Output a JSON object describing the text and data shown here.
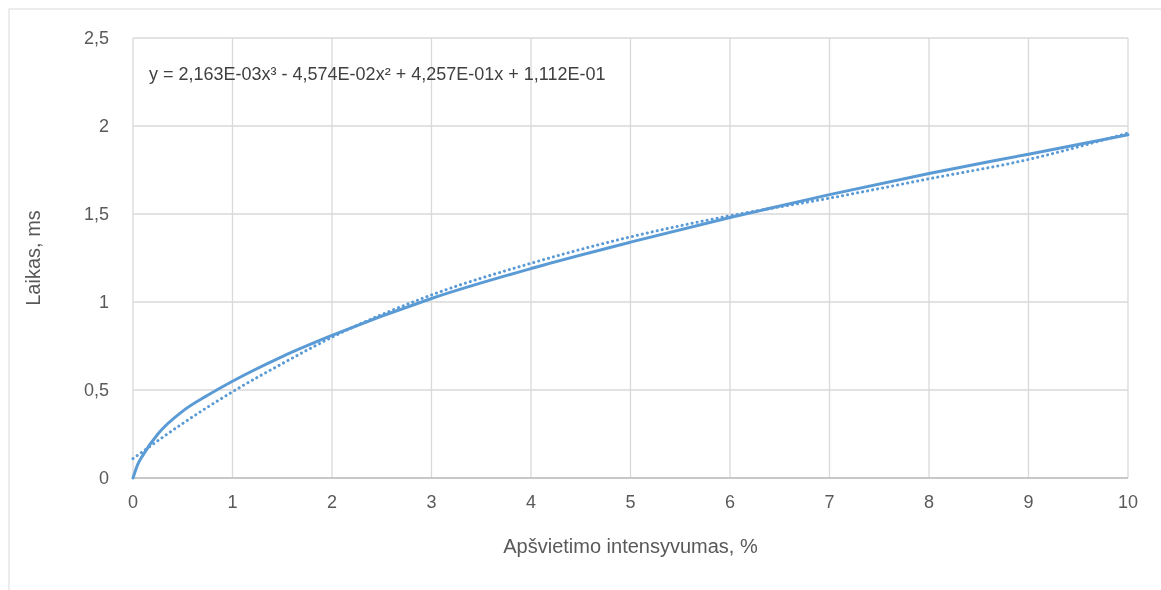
{
  "chart_data": {
    "type": "line",
    "xlabel": "Apšvietimo intensyvumas, %",
    "ylabel": "Laikas, ms",
    "annotations": [
      "y = 2,163E-03x³ - 4,574E-02x² + 4,257E-01x + 1,112E-01"
    ],
    "xlim": [
      0,
      10
    ],
    "xticks": [
      0,
      1,
      2,
      3,
      4,
      5,
      6,
      7,
      8,
      9,
      10
    ],
    "ylim": [
      0,
      2.5
    ],
    "yticks": [
      0,
      {
        "value": 0.5,
        "label": "0,5"
      },
      1,
      {
        "value": 1.5,
        "label": "1,5"
      },
      2,
      {
        "value": 2.5,
        "label": "2,5"
      }
    ],
    "grid": true,
    "series": [
      {
        "color": "#5b9bd5",
        "line_style": "solid",
        "x": [
          0,
          0.05,
          0.1,
          0.25,
          0.5,
          0.75,
          1,
          1.5,
          2,
          3,
          4,
          5,
          6,
          7,
          8,
          9,
          10
        ],
        "values": [
          0,
          0.08,
          0.13,
          0.25,
          0.38,
          0.47,
          0.55,
          0.69,
          0.81,
          1.02,
          1.19,
          1.34,
          1.48,
          1.61,
          1.73,
          1.84,
          1.95
        ]
      },
      {
        "color": "#5b9bd5",
        "line_style": "dotted",
        "x": [
          0,
          0.5,
          1,
          1.5,
          2,
          3,
          4,
          5,
          6,
          7,
          8,
          9,
          10
        ],
        "values": [
          0.11,
          0.31,
          0.49,
          0.65,
          0.8,
          1.04,
          1.22,
          1.37,
          1.49,
          1.59,
          1.7,
          1.81,
          1.96
        ]
      }
    ]
  }
}
